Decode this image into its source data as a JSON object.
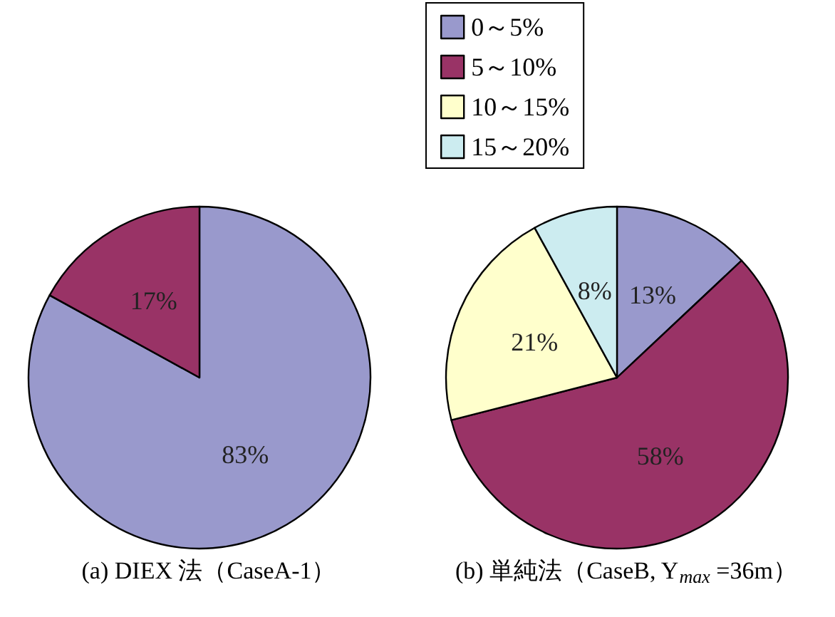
{
  "chart_data": [
    {
      "type": "pie",
      "categories": [
        null,
        null
      ],
      "values": [
        83,
        17
      ],
      "colors": [
        "#9999cc",
        "#993366"
      ],
      "value_labels": [
        "83%",
        "17%"
      ],
      "annotations": [
        "(a) DIEX 法（CaseA-1）"
      ],
      "legend": false
    },
    {
      "type": "pie",
      "categories": [
        "0～5%",
        "5～10%",
        "10～15%",
        "15～20%"
      ],
      "values": [
        13,
        58,
        21,
        8
      ],
      "colors": [
        "#9999cc",
        "#993366",
        "#ffffcc",
        "#ccecf0"
      ],
      "value_labels": [
        "13%",
        "58%",
        "21%",
        "8%"
      ],
      "annotations": [
        "(b) 単純法（CaseB, Y$_{max}$ =36m）"
      ],
      "legend": "top left"
    }
  ]
}
